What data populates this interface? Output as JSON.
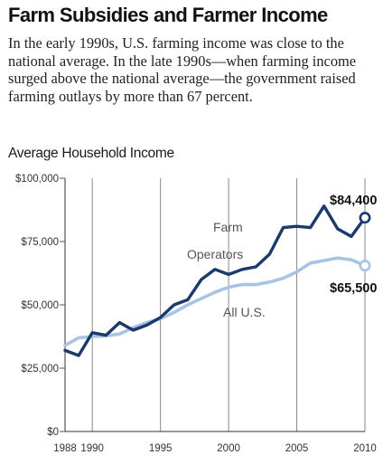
{
  "title": "Farm Subsidies and Farmer Income",
  "description": "In the early 1990s, U.S. farming income was close to the national average. In the late 1990s—when farming income surged above the national average—the government raised farming outlays by more than 67 percent.",
  "chart_data": {
    "type": "line",
    "title": "Average Household Income",
    "xlabel": "",
    "ylabel": "",
    "xlim": [
      1988,
      2010
    ],
    "ylim": [
      0,
      100000
    ],
    "x_ticks": [
      1988,
      1990,
      1995,
      2000,
      2005,
      2010
    ],
    "x_tick_labels": [
      "1988",
      "1990",
      "1995",
      "2000",
      "2005",
      "2010"
    ],
    "y_ticks": [
      0,
      25000,
      50000,
      75000,
      100000
    ],
    "y_tick_labels": [
      "$0",
      "$25,000",
      "$50,000",
      "$75,000",
      "$100,000"
    ],
    "grid": "vertical",
    "series": [
      {
        "name": "Farm Operators",
        "color": "#1b3a6b",
        "x": [
          1988,
          1989,
          1990,
          1991,
          1992,
          1993,
          1994,
          1995,
          1996,
          1997,
          1998,
          1999,
          2000,
          2001,
          2002,
          2003,
          2004,
          2005,
          2006,
          2007,
          2008,
          2009,
          2010
        ],
        "y": [
          32000,
          30000,
          39000,
          38000,
          43000,
          40000,
          42000,
          45000,
          50000,
          52000,
          60000,
          64000,
          62000,
          64000,
          65000,
          70000,
          80500,
          81000,
          80500,
          89000,
          80000,
          77000,
          84400
        ]
      },
      {
        "name": "All U.S.",
        "color": "#a9c4e3",
        "x": [
          1988,
          1989,
          1990,
          1991,
          1992,
          1993,
          1994,
          1995,
          1996,
          1997,
          1998,
          1999,
          2000,
          2001,
          2002,
          2003,
          2004,
          2005,
          2006,
          2007,
          2008,
          2009,
          2010
        ],
        "y": [
          34000,
          37000,
          37500,
          37700,
          38500,
          41000,
          43000,
          44500,
          47000,
          50000,
          52500,
          55000,
          57000,
          58000,
          58000,
          59000,
          60500,
          63000,
          66500,
          67500,
          68500,
          67800,
          65500
        ]
      }
    ],
    "series_labels": [
      "Farm",
      "Operators",
      "All U.S."
    ],
    "end_labels": [
      "$84,400",
      "$65,500"
    ]
  }
}
